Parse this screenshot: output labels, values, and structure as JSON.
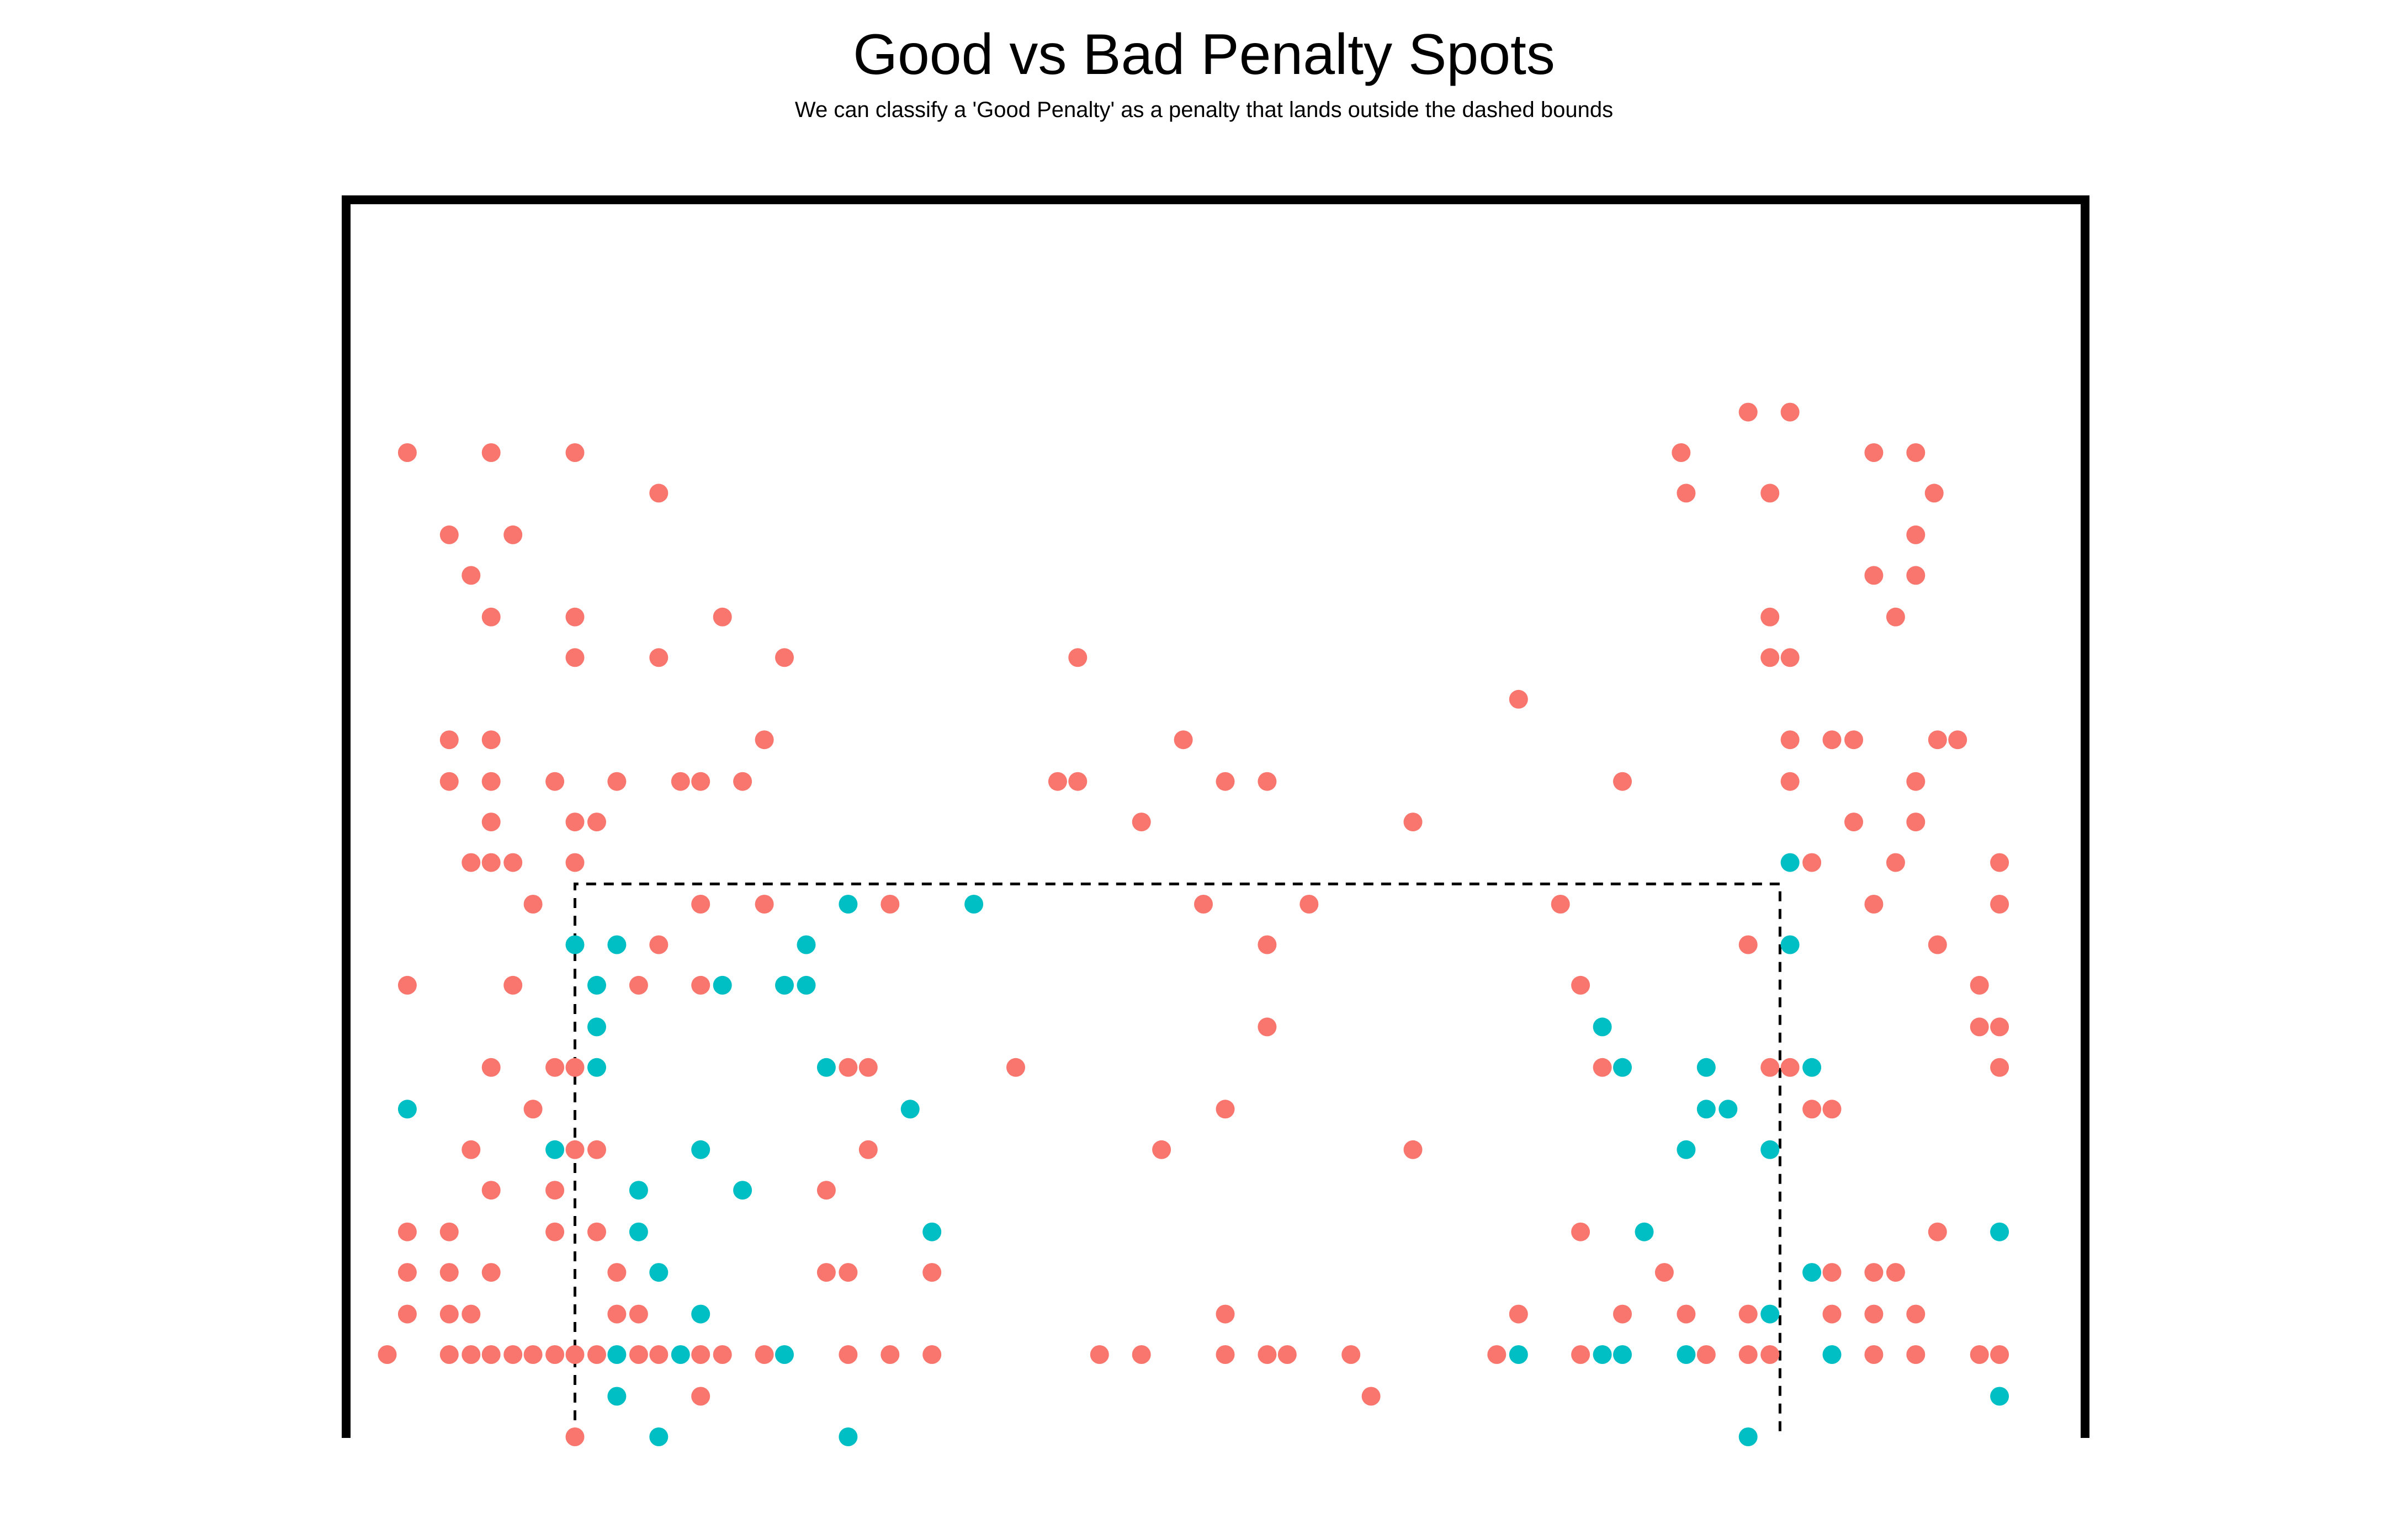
{
  "chart_data": {
    "type": "scatter",
    "title": "Good vs Bad Penalty Spots",
    "subtitle": "We can classify a 'Good Penalty' as a penalty that lands outside the dashed bounds",
    "xlabel": "",
    "ylabel": "",
    "xlim": [
      0,
      1
    ],
    "ylim": [
      0,
      1
    ],
    "grid": false,
    "legend": "none",
    "colors": {
      "good": "#F8766D",
      "bad": "#00BFC4",
      "goal": "#000000",
      "bounds": "#000000"
    },
    "bounds": {
      "x": [
        0.125,
        0.844
      ],
      "y": [
        0,
        0.492
      ]
    },
    "series": [
      {
        "group": "good",
        "color": "#F8766D",
        "points": [
          [
            0.025,
            0.875
          ],
          [
            0.075,
            0.875
          ],
          [
            0.125,
            0.875
          ],
          [
            0.785,
            0.875
          ],
          [
            0.9,
            0.875
          ],
          [
            0.925,
            0.875
          ],
          [
            0.825,
            0.911
          ],
          [
            0.85,
            0.911
          ],
          [
            0.175,
            0.839
          ],
          [
            0.788,
            0.839
          ],
          [
            0.838,
            0.839
          ],
          [
            0.936,
            0.839
          ],
          [
            0.05,
            0.802
          ],
          [
            0.088,
            0.802
          ],
          [
            0.925,
            0.802
          ],
          [
            0.063,
            0.766
          ],
          [
            0.9,
            0.766
          ],
          [
            0.925,
            0.766
          ],
          [
            0.075,
            0.729
          ],
          [
            0.125,
            0.729
          ],
          [
            0.213,
            0.729
          ],
          [
            0.838,
            0.729
          ],
          [
            0.913,
            0.729
          ],
          [
            0.125,
            0.693
          ],
          [
            0.175,
            0.693
          ],
          [
            0.25,
            0.693
          ],
          [
            0.425,
            0.693
          ],
          [
            0.838,
            0.693
          ],
          [
            0.85,
            0.693
          ],
          [
            0.688,
            0.656
          ],
          [
            0.05,
            0.62
          ],
          [
            0.075,
            0.62
          ],
          [
            0.238,
            0.62
          ],
          [
            0.488,
            0.62
          ],
          [
            0.85,
            0.62
          ],
          [
            0.875,
            0.62
          ],
          [
            0.888,
            0.62
          ],
          [
            0.938,
            0.62
          ],
          [
            0.95,
            0.62
          ],
          [
            0.05,
            0.583
          ],
          [
            0.075,
            0.583
          ],
          [
            0.113,
            0.583
          ],
          [
            0.15,
            0.583
          ],
          [
            0.188,
            0.583
          ],
          [
            0.2,
            0.583
          ],
          [
            0.225,
            0.583
          ],
          [
            0.413,
            0.583
          ],
          [
            0.425,
            0.583
          ],
          [
            0.513,
            0.583
          ],
          [
            0.538,
            0.583
          ],
          [
            0.75,
            0.583
          ],
          [
            0.85,
            0.583
          ],
          [
            0.925,
            0.583
          ],
          [
            0.075,
            0.547
          ],
          [
            0.125,
            0.547
          ],
          [
            0.138,
            0.547
          ],
          [
            0.463,
            0.547
          ],
          [
            0.625,
            0.547
          ],
          [
            0.888,
            0.547
          ],
          [
            0.925,
            0.547
          ],
          [
            0.063,
            0.511
          ],
          [
            0.075,
            0.511
          ],
          [
            0.088,
            0.511
          ],
          [
            0.125,
            0.511
          ],
          [
            0.863,
            0.511
          ],
          [
            0.913,
            0.511
          ],
          [
            0.975,
            0.511
          ],
          [
            0.1,
            0.474
          ],
          [
            0.2,
            0.474
          ],
          [
            0.238,
            0.474
          ],
          [
            0.313,
            0.474
          ],
          [
            0.5,
            0.474
          ],
          [
            0.563,
            0.474
          ],
          [
            0.713,
            0.474
          ],
          [
            0.9,
            0.474
          ],
          [
            0.975,
            0.474
          ],
          [
            0.175,
            0.438
          ],
          [
            0.538,
            0.438
          ],
          [
            0.825,
            0.438
          ],
          [
            0.938,
            0.438
          ],
          [
            0.025,
            0.402
          ],
          [
            0.088,
            0.402
          ],
          [
            0.163,
            0.402
          ],
          [
            0.2,
            0.402
          ],
          [
            0.725,
            0.402
          ],
          [
            0.963,
            0.402
          ],
          [
            0.538,
            0.365
          ],
          [
            0.963,
            0.365
          ],
          [
            0.975,
            0.365
          ],
          [
            0.075,
            0.329
          ],
          [
            0.113,
            0.329
          ],
          [
            0.125,
            0.329
          ],
          [
            0.288,
            0.329
          ],
          [
            0.3,
            0.329
          ],
          [
            0.388,
            0.329
          ],
          [
            0.738,
            0.329
          ],
          [
            0.838,
            0.329
          ],
          [
            0.85,
            0.329
          ],
          [
            0.975,
            0.329
          ],
          [
            0.1,
            0.292
          ],
          [
            0.513,
            0.292
          ],
          [
            0.863,
            0.292
          ],
          [
            0.875,
            0.292
          ],
          [
            0.063,
            0.256
          ],
          [
            0.125,
            0.256
          ],
          [
            0.138,
            0.256
          ],
          [
            0.3,
            0.256
          ],
          [
            0.475,
            0.256
          ],
          [
            0.625,
            0.256
          ],
          [
            0.075,
            0.22
          ],
          [
            0.113,
            0.22
          ],
          [
            0.275,
            0.22
          ],
          [
            0.025,
            0.183
          ],
          [
            0.05,
            0.183
          ],
          [
            0.113,
            0.183
          ],
          [
            0.138,
            0.183
          ],
          [
            0.725,
            0.183
          ],
          [
            0.938,
            0.183
          ],
          [
            0.025,
            0.147
          ],
          [
            0.05,
            0.147
          ],
          [
            0.075,
            0.147
          ],
          [
            0.15,
            0.147
          ],
          [
            0.275,
            0.147
          ],
          [
            0.288,
            0.147
          ],
          [
            0.338,
            0.147
          ],
          [
            0.775,
            0.147
          ],
          [
            0.875,
            0.147
          ],
          [
            0.9,
            0.147
          ],
          [
            0.913,
            0.147
          ],
          [
            0.025,
            0.11
          ],
          [
            0.05,
            0.11
          ],
          [
            0.063,
            0.11
          ],
          [
            0.15,
            0.11
          ],
          [
            0.163,
            0.11
          ],
          [
            0.513,
            0.11
          ],
          [
            0.688,
            0.11
          ],
          [
            0.75,
            0.11
          ],
          [
            0.788,
            0.11
          ],
          [
            0.825,
            0.11
          ],
          [
            0.875,
            0.11
          ],
          [
            0.9,
            0.11
          ],
          [
            0.925,
            0.11
          ],
          [
            0.013,
            0.074
          ],
          [
            0.05,
            0.074
          ],
          [
            0.063,
            0.074
          ],
          [
            0.075,
            0.074
          ],
          [
            0.088,
            0.074
          ],
          [
            0.1,
            0.074
          ],
          [
            0.113,
            0.074
          ],
          [
            0.125,
            0.074
          ],
          [
            0.138,
            0.074
          ],
          [
            0.163,
            0.074
          ],
          [
            0.175,
            0.074
          ],
          [
            0.2,
            0.074
          ],
          [
            0.213,
            0.074
          ],
          [
            0.238,
            0.074
          ],
          [
            0.288,
            0.074
          ],
          [
            0.313,
            0.074
          ],
          [
            0.338,
            0.074
          ],
          [
            0.438,
            0.074
          ],
          [
            0.463,
            0.074
          ],
          [
            0.513,
            0.074
          ],
          [
            0.538,
            0.074
          ],
          [
            0.55,
            0.074
          ],
          [
            0.588,
            0.074
          ],
          [
            0.675,
            0.074
          ],
          [
            0.725,
            0.074
          ],
          [
            0.8,
            0.074
          ],
          [
            0.825,
            0.074
          ],
          [
            0.838,
            0.074
          ],
          [
            0.9,
            0.074
          ],
          [
            0.925,
            0.074
          ],
          [
            0.963,
            0.074
          ],
          [
            0.975,
            0.074
          ],
          [
            0.2,
            0.037
          ],
          [
            0.6,
            0.037
          ],
          [
            0.125,
            0.001
          ]
        ]
      },
      {
        "group": "bad",
        "color": "#00BFC4",
        "points": [
          [
            0.85,
            0.511
          ],
          [
            0.288,
            0.474
          ],
          [
            0.363,
            0.474
          ],
          [
            0.125,
            0.438
          ],
          [
            0.15,
            0.438
          ],
          [
            0.263,
            0.438
          ],
          [
            0.85,
            0.438
          ],
          [
            0.138,
            0.402
          ],
          [
            0.213,
            0.402
          ],
          [
            0.25,
            0.402
          ],
          [
            0.263,
            0.402
          ],
          [
            0.138,
            0.365
          ],
          [
            0.738,
            0.365
          ],
          [
            0.138,
            0.329
          ],
          [
            0.275,
            0.329
          ],
          [
            0.75,
            0.329
          ],
          [
            0.8,
            0.329
          ],
          [
            0.863,
            0.329
          ],
          [
            0.025,
            0.292
          ],
          [
            0.325,
            0.292
          ],
          [
            0.8,
            0.292
          ],
          [
            0.813,
            0.292
          ],
          [
            0.113,
            0.256
          ],
          [
            0.2,
            0.256
          ],
          [
            0.788,
            0.256
          ],
          [
            0.838,
            0.256
          ],
          [
            0.163,
            0.22
          ],
          [
            0.225,
            0.22
          ],
          [
            0.163,
            0.183
          ],
          [
            0.338,
            0.183
          ],
          [
            0.763,
            0.183
          ],
          [
            0.975,
            0.183
          ],
          [
            0.175,
            0.147
          ],
          [
            0.863,
            0.147
          ],
          [
            0.2,
            0.11
          ],
          [
            0.838,
            0.11
          ],
          [
            0.15,
            0.074
          ],
          [
            0.188,
            0.074
          ],
          [
            0.25,
            0.074
          ],
          [
            0.688,
            0.074
          ],
          [
            0.738,
            0.074
          ],
          [
            0.75,
            0.074
          ],
          [
            0.788,
            0.074
          ],
          [
            0.875,
            0.074
          ],
          [
            0.15,
            0.037
          ],
          [
            0.975,
            0.037
          ],
          [
            0.175,
            0.001
          ],
          [
            0.288,
            0.001
          ],
          [
            0.825,
            0.001
          ]
        ]
      }
    ]
  }
}
